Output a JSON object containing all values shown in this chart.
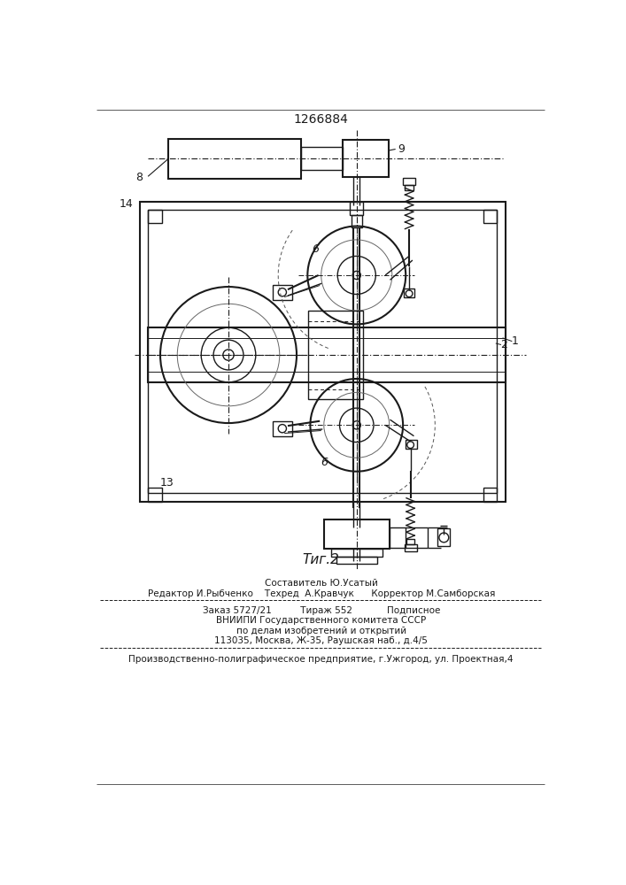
{
  "patent_number": "1266884",
  "fig_label": "Τиг.2",
  "bg_color": "#ffffff",
  "line_color": "#1a1a1a",
  "footer_lines": [
    "Составитель Ю.Усатый",
    "Редактор И.Рыбченко    Техред  А.Кравчук      Корректор М.Самборская",
    "Заказ 5727/21          Тираж 552            Подписное",
    "ВНИИПИ Государственного комитета СССР",
    "по делам изобретений и открытий",
    "113035, Москва, Ж-35, Раушская наб., д.4/5",
    "Производственно-полиграфическое предприятие, г.Ужгород, ул. Проектная,4"
  ]
}
